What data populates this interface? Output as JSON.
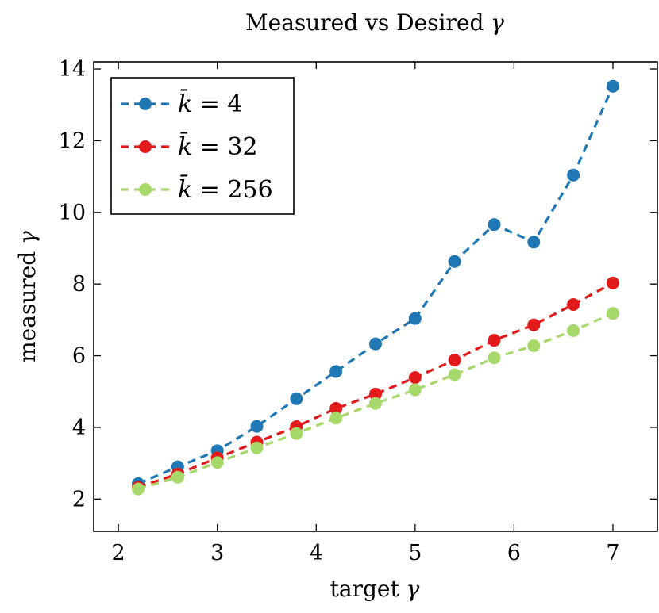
{
  "chart_data": {
    "type": "line",
    "title": "Measured vs Desired",
    "title_symbol": "γ",
    "xlabel": "target",
    "xlabel_symbol": "γ",
    "ylabel": "measured",
    "ylabel_symbol": "γ",
    "xlim": [
      1.75,
      7.45
    ],
    "ylim": [
      1.1,
      14.2
    ],
    "xticks": [
      2,
      3,
      4,
      5,
      6,
      7
    ],
    "yticks": [
      2,
      4,
      6,
      8,
      10,
      12,
      14
    ],
    "grid": false,
    "legend_position": "top-left",
    "legend_prefix": "k̄ =",
    "x": [
      2.2,
      2.6,
      3.0,
      3.4,
      3.8,
      4.2,
      4.6,
      5.0,
      5.4,
      5.8,
      6.2,
      6.6,
      7.0
    ],
    "series": [
      {
        "name": "4",
        "color": "#1f77b4",
        "values": [
          2.43,
          2.9,
          3.35,
          4.03,
          4.8,
          5.56,
          6.33,
          7.04,
          8.63,
          9.66,
          9.17,
          11.04,
          13.52
        ]
      },
      {
        "name": "32",
        "color": "#e31a1c",
        "values": [
          2.33,
          2.7,
          3.15,
          3.59,
          4.02,
          4.53,
          4.93,
          5.39,
          5.88,
          6.43,
          6.86,
          7.43,
          8.03
        ]
      },
      {
        "name": "256",
        "color": "#a6d96a",
        "values": [
          2.28,
          2.61,
          3.02,
          3.43,
          3.83,
          4.26,
          4.67,
          5.05,
          5.47,
          5.94,
          6.28,
          6.7,
          7.18
        ]
      }
    ]
  }
}
